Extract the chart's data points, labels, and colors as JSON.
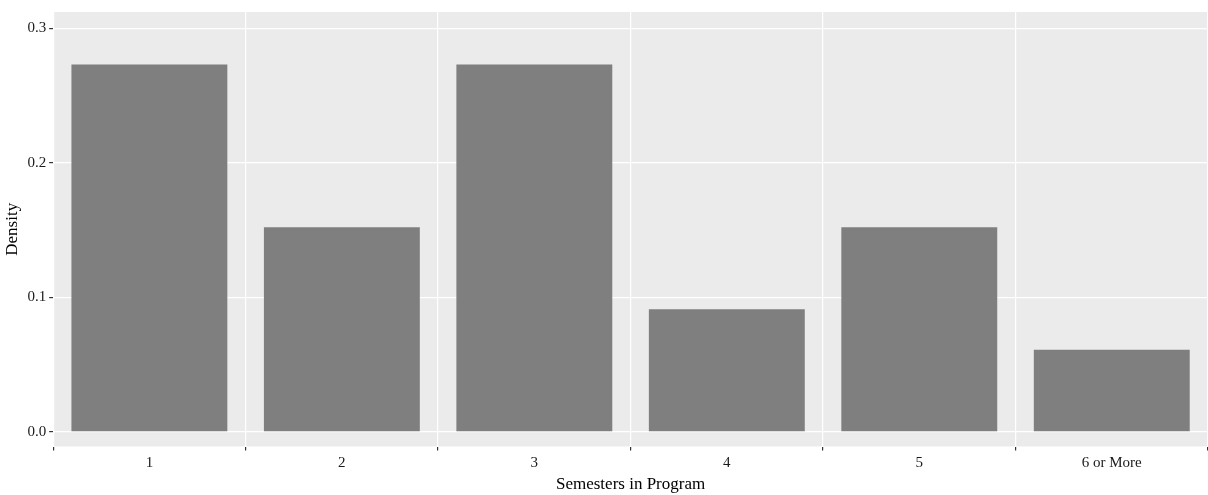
{
  "chart_data": {
    "type": "bar",
    "xlabel": "Semesters in Program",
    "ylabel": "Density",
    "categories": [
      "1",
      "2",
      "3",
      "4",
      "5",
      "6 or More"
    ],
    "values": [
      0.273,
      0.152,
      0.273,
      0.091,
      0.152,
      0.061
    ],
    "color": "#7f7f7f",
    "ylim": [
      -0.011,
      0.312
    ],
    "yticks": [
      {
        "value": 0,
        "label": "0.0"
      },
      0.1,
      0.2,
      0.3
    ],
    "grid": true,
    "legend": false
  }
}
